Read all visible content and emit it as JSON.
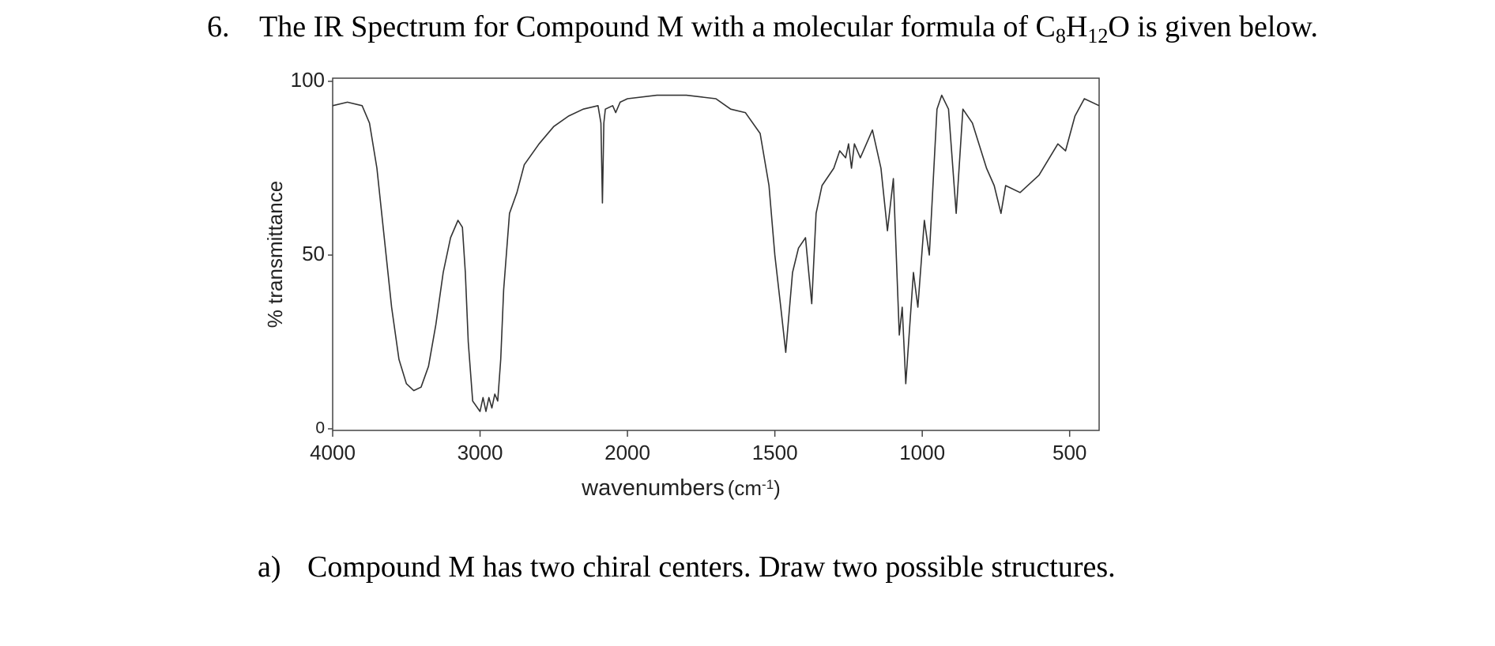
{
  "question": {
    "number": "6.",
    "text": "The IR Spectrum for Compound M with a molecular formula of ",
    "formula": [
      "C",
      "8",
      "H",
      "12",
      "O"
    ],
    "text_end": " is given below."
  },
  "chart_data": {
    "type": "line",
    "y_label": "% transmittance",
    "x_label": "wavenumbers",
    "x_label_unit": [
      "(cm",
      "-1",
      ")"
    ],
    "x": [
      4000,
      3900,
      3800,
      3750,
      3700,
      3650,
      3600,
      3550,
      3500,
      3450,
      3400,
      3350,
      3300,
      3250,
      3200,
      3150,
      3120,
      3100,
      3080,
      3050,
      3000,
      2980,
      2960,
      2940,
      2920,
      2900,
      2880,
      2860,
      2840,
      2800,
      2750,
      2700,
      2600,
      2500,
      2400,
      2300,
      2200,
      2180,
      2170,
      2160,
      2150,
      2100,
      2080,
      2050,
      2000,
      1900,
      1800,
      1700,
      1650,
      1600,
      1550,
      1520,
      1500,
      1480,
      1463,
      1440,
      1420,
      1396,
      1385,
      1375,
      1360,
      1340,
      1300,
      1280,
      1260,
      1250,
      1240,
      1230,
      1210,
      1169,
      1140,
      1118,
      1098,
      1078,
      1068,
      1056,
      1030,
      1015,
      993,
      976,
      950,
      934,
      911,
      885,
      862,
      830,
      782,
      756,
      733,
      717,
      668,
      604,
      540,
      514,
      482,
      450,
      400
    ],
    "values": [
      93,
      94,
      93,
      88,
      75,
      55,
      35,
      20,
      13,
      11,
      12,
      18,
      30,
      45,
      55,
      60,
      58,
      45,
      25,
      8,
      5,
      9,
      5,
      9,
      6,
      10,
      8,
      20,
      40,
      62,
      68,
      76,
      82,
      87,
      90,
      92,
      93,
      88,
      65,
      88,
      92,
      93,
      91,
      94,
      95,
      96,
      96,
      95,
      92,
      91,
      85,
      70,
      50,
      35,
      22,
      45,
      52,
      55,
      45,
      36,
      62,
      70,
      75,
      80,
      78,
      82,
      75,
      82,
      78,
      86,
      75,
      57,
      72,
      27,
      35,
      13,
      45,
      35,
      60,
      50,
      92,
      96,
      92,
      62,
      92,
      88,
      75,
      70,
      62,
      70,
      68,
      73,
      82,
      80,
      90,
      95,
      93
    ],
    "color": "#333333",
    "xlim": [
      4000,
      400
    ],
    "ylim": [
      0,
      100
    ],
    "xticks": [
      4000,
      3000,
      2000,
      1500,
      1000,
      500
    ],
    "yticks": [
      0,
      50,
      100
    ],
    "x_scale_change": 2000
  },
  "part_a": {
    "label": "a)",
    "text": "Compound M has two chiral centers. Draw two possible structures."
  }
}
